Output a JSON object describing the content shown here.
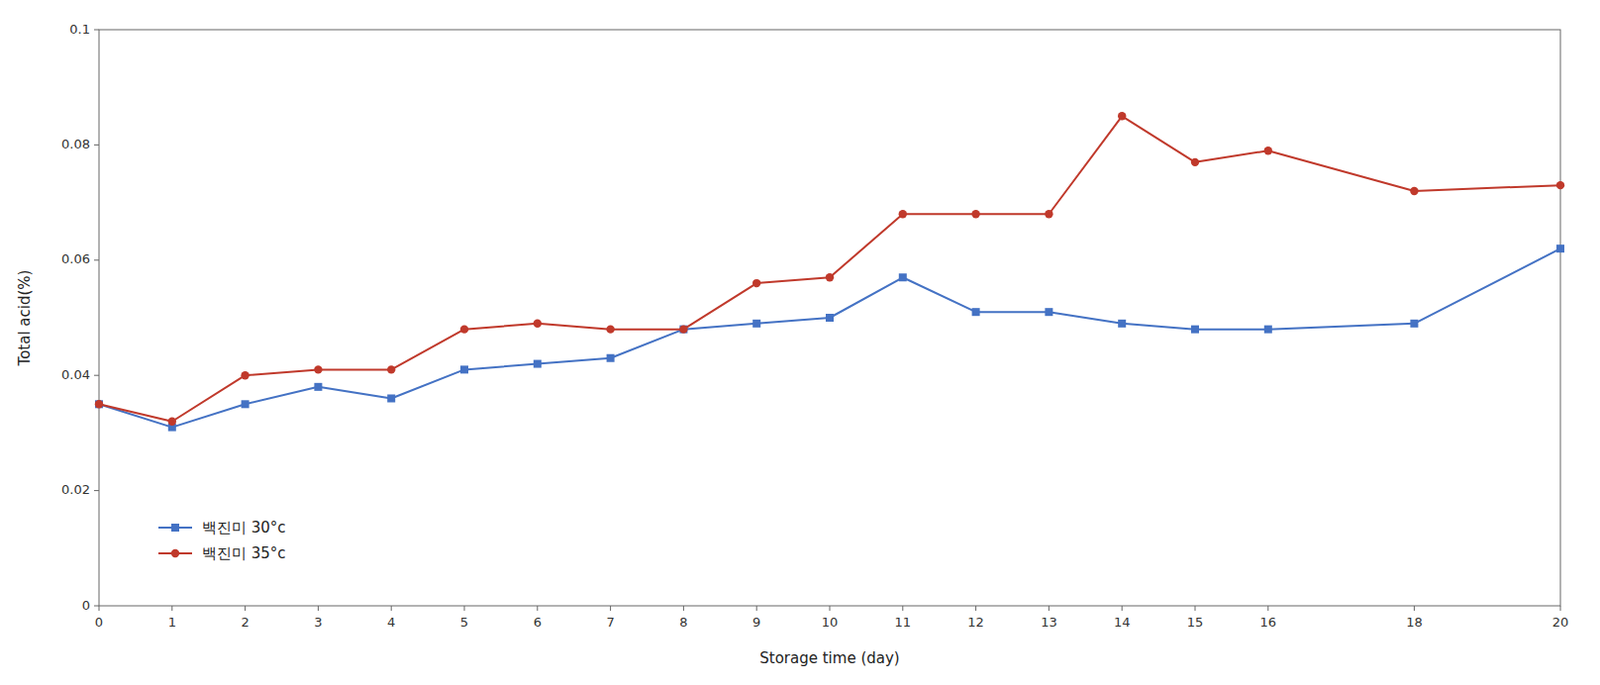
{
  "chart_data": {
    "type": "line",
    "xlabel": "Storage time (day)",
    "ylabel": "Total acid(%)",
    "x": [
      0,
      1,
      2,
      3,
      4,
      5,
      6,
      7,
      8,
      9,
      10,
      11,
      12,
      13,
      14,
      15,
      16,
      18,
      20
    ],
    "series": [
      {
        "name": "백진미 30°c",
        "color": "#4472C4",
        "marker": "square",
        "values": [
          0.035,
          0.031,
          0.035,
          0.038,
          0.036,
          0.041,
          0.042,
          0.043,
          0.048,
          0.049,
          0.05,
          0.057,
          0.051,
          0.051,
          0.049,
          0.048,
          0.048,
          0.049,
          0.062
        ]
      },
      {
        "name": "백진미 35°c",
        "color": "#C0392B",
        "marker": "circle",
        "values": [
          0.035,
          0.032,
          0.04,
          0.041,
          0.041,
          0.048,
          0.049,
          0.048,
          0.048,
          0.056,
          0.057,
          0.068,
          0.068,
          0.068,
          0.085,
          0.077,
          0.079,
          0.072,
          0.073
        ]
      }
    ],
    "xlim": [
      0,
      20
    ],
    "xticks": [
      0,
      1,
      2,
      3,
      4,
      5,
      6,
      7,
      8,
      9,
      10,
      11,
      12,
      13,
      14,
      15,
      16,
      18,
      20
    ],
    "ylim": [
      0,
      0.1
    ],
    "yticks": [
      0,
      0.02,
      0.04,
      0.06,
      0.08,
      0.1
    ],
    "grid": false,
    "legend": "lower left"
  }
}
